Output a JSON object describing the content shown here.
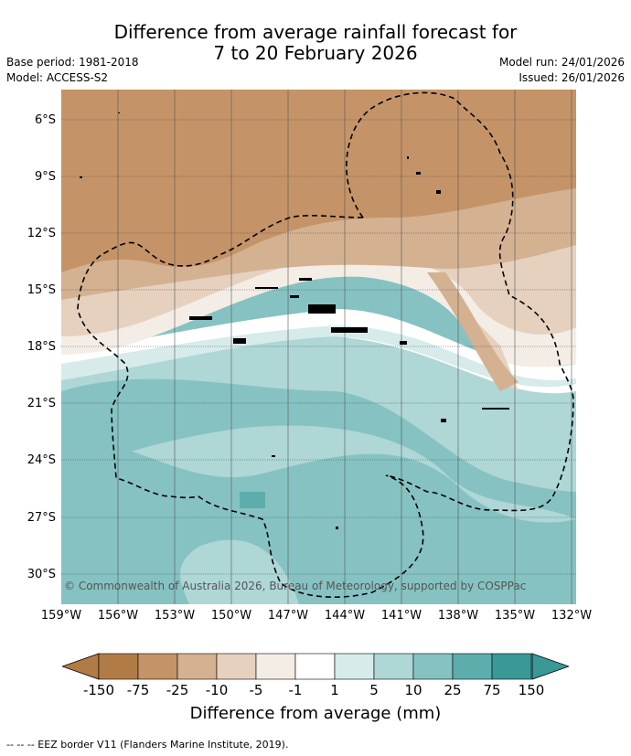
{
  "title_line1": "Difference from average rainfall forecast for",
  "title_line2": "7 to 20 February 2026",
  "meta": {
    "base_period": "Base period: 1981-2018",
    "model": "Model: ACCESS-S2",
    "model_run": "Model run: 24/01/2026",
    "issued": "Issued: 26/01/2026"
  },
  "latitudes": [
    "6°S",
    "9°S",
    "12°S",
    "15°S",
    "18°S",
    "21°S",
    "24°S",
    "27°S",
    "30°S"
  ],
  "longitudes": [
    "159°W",
    "156°W",
    "153°W",
    "150°W",
    "147°W",
    "144°W",
    "141°W",
    "138°W",
    "135°W",
    "132°W"
  ],
  "copyright": "© Commonwealth of Australia 2026, Bureau of Meteorology, supported by COSPPac",
  "colorbar": {
    "ticks": [
      "-150",
      "-75",
      "-25",
      "-10",
      "-5",
      "-1",
      "1",
      "5",
      "10",
      "25",
      "75",
      "150"
    ],
    "colors": [
      "#b07b45",
      "#c49468",
      "#d4b191",
      "#e6d1bf",
      "#f3ede6",
      "#ffffff",
      "#d6ebea",
      "#aed7d6",
      "#86c2c2",
      "#5eadad",
      "#3a9897"
    ],
    "label": "Difference from average (mm)"
  },
  "legend": {
    "eez": "-- -- -- EEZ border V11 (Flanders Marine Institute, 2019)."
  }
}
